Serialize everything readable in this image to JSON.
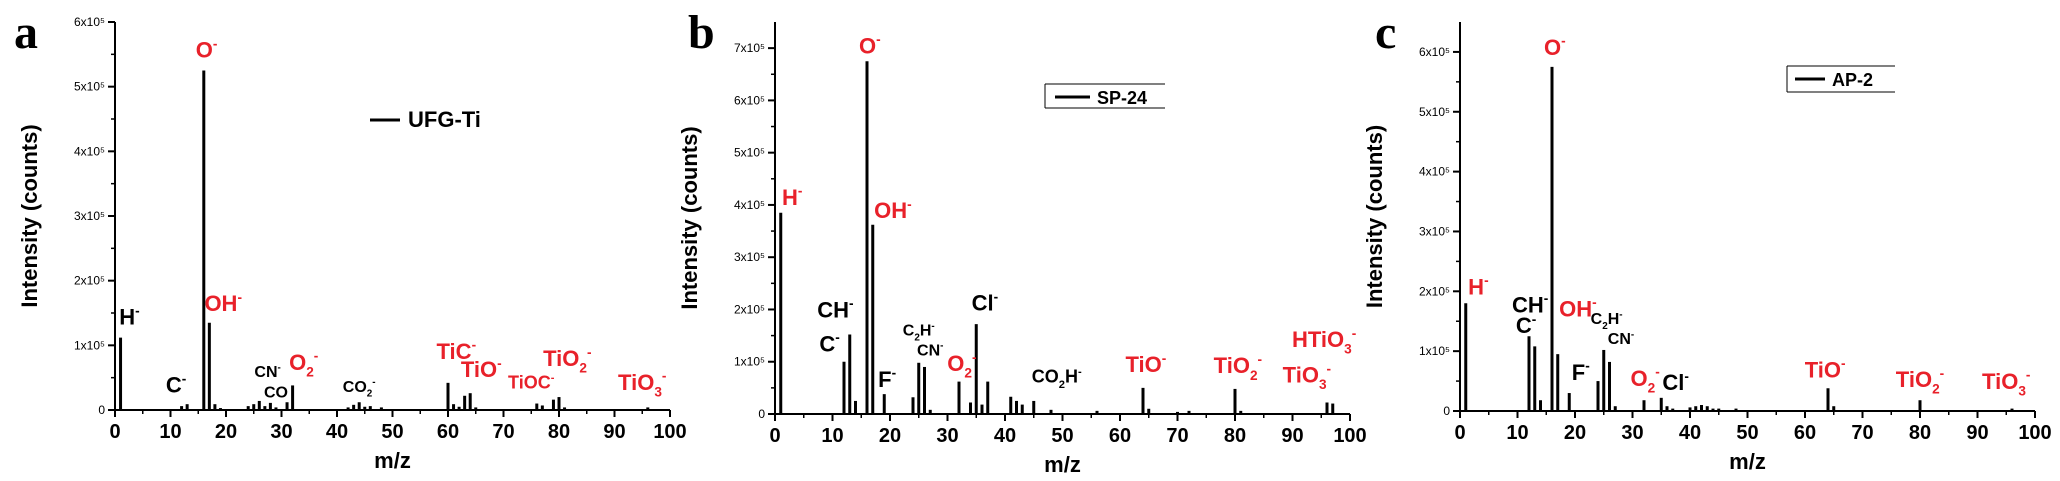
{
  "colors": {
    "axis": "#000000",
    "bars": "#000000",
    "oxide_label": "#e8212a",
    "other_label": "#000000",
    "background": "#ffffff"
  },
  "chart_data": [
    {
      "panel": "a",
      "type": "bar",
      "xlabel": "m/z",
      "ylabel": "Intensity (counts)",
      "xlim": [
        0,
        100
      ],
      "ylim": [
        0,
        600000
      ],
      "xticks": [
        0,
        10,
        20,
        30,
        40,
        50,
        60,
        70,
        80,
        90,
        100
      ],
      "yticks": [
        0,
        100000,
        200000,
        300000,
        400000,
        500000,
        600000
      ],
      "ytick_labels": [
        "0",
        "1x10⁵",
        "2x10⁵",
        "3x10⁵",
        "4x10⁵",
        "5x10⁵",
        "6x10⁵"
      ],
      "legend": {
        "label": "UFG-Ti",
        "position": "upper-right"
      },
      "series": [
        {
          "name": "UFG-Ti",
          "x": [
            1,
            12,
            13,
            16,
            17,
            18,
            19,
            24,
            25,
            26,
            27,
            28,
            29,
            31,
            32,
            42,
            43,
            44,
            45,
            46,
            48,
            60,
            61,
            62,
            63,
            64,
            65,
            76,
            77,
            79,
            80,
            81,
            96
          ],
          "y": [
            112000,
            6000,
            9000,
            525000,
            135000,
            9000,
            3000,
            6000,
            9000,
            14000,
            6000,
            11000,
            4000,
            12000,
            38000,
            4000,
            8000,
            12000,
            5000,
            6000,
            4000,
            42000,
            9000,
            5000,
            22000,
            26000,
            4000,
            10000,
            7000,
            16000,
            20000,
            4000,
            4000
          ]
        }
      ],
      "annotations": [
        {
          "text": "O",
          "sup": "-",
          "x": 16.5,
          "y": 545000,
          "color": "red",
          "size": "large"
        },
        {
          "text": "OH",
          "sup": "-",
          "x": 19.5,
          "y": 153000,
          "color": "red",
          "size": "large"
        },
        {
          "text": "H",
          "sup": "-",
          "x": 2.6,
          "y": 132000,
          "color": "black",
          "size": "large"
        },
        {
          "text": "C",
          "sup": "-",
          "x": 11.0,
          "y": 27000,
          "color": "black",
          "size": "large"
        },
        {
          "text": "CN",
          "sup": "-",
          "x": 27.5,
          "y": 51000,
          "color": "black",
          "size": "small"
        },
        {
          "text": "CO",
          "sup": "",
          "x": 29.0,
          "y": 19000,
          "color": "black",
          "size": "small"
        },
        {
          "text": "O",
          "sub": "2",
          "sup": "-",
          "x": 34.0,
          "y": 62000,
          "color": "red",
          "size": "large"
        },
        {
          "text": "CO",
          "sub": "2",
          "sup": "-",
          "x": 44.0,
          "y": 28000,
          "color": "black",
          "size": "small"
        },
        {
          "text": "TiC",
          "sup": "-",
          "x": 61.5,
          "y": 79000,
          "color": "red",
          "size": "large"
        },
        {
          "text": "TiO",
          "sup": "-",
          "x": 66.0,
          "y": 51000,
          "color": "red",
          "size": "large"
        },
        {
          "text": "TiOC",
          "sup": "-",
          "x": 75.0,
          "y": 33000,
          "color": "red",
          "size": "medium"
        },
        {
          "text": "TiO",
          "sub": "2",
          "sup": "-",
          "x": 81.5,
          "y": 68000,
          "color": "red",
          "size": "large"
        },
        {
          "text": "TiO",
          "sub": "3",
          "sup": "-",
          "x": 95.0,
          "y": 31000,
          "color": "red",
          "size": "large"
        }
      ]
    },
    {
      "panel": "b",
      "type": "bar",
      "xlabel": "m/z",
      "ylabel": "Intensity (counts)",
      "xlim": [
        0,
        100
      ],
      "ylim": [
        0,
        750000
      ],
      "xticks": [
        0,
        10,
        20,
        30,
        40,
        50,
        60,
        70,
        80,
        90,
        100
      ],
      "yticks": [
        0,
        100000,
        200000,
        300000,
        400000,
        500000,
        600000,
        700000
      ],
      "ytick_labels": [
        "0",
        "1x10⁵",
        "2x10⁵",
        "3x10⁵",
        "4x10⁵",
        "5x10⁵",
        "6x10⁵",
        "7x10⁵"
      ],
      "legend": {
        "label": "SP-24",
        "position": "upper-right"
      },
      "series": [
        {
          "name": "SP-24",
          "x": [
            1,
            12,
            13,
            14,
            16,
            17,
            19,
            24,
            25,
            26,
            27,
            32,
            34,
            35,
            36,
            37,
            41,
            42,
            43,
            45,
            48,
            56,
            64,
            65,
            70,
            72,
            80,
            81,
            96,
            97
          ],
          "y": [
            385000,
            100000,
            152000,
            25000,
            675000,
            362000,
            38000,
            32000,
            98000,
            90000,
            8000,
            62000,
            22000,
            172000,
            18000,
            62000,
            33000,
            25000,
            18000,
            25000,
            8000,
            6000,
            50000,
            10000,
            4000,
            6000,
            48000,
            6000,
            22000,
            20000
          ]
        }
      ],
      "annotations": [
        {
          "text": "O",
          "sup": "-",
          "x": 16.5,
          "y": 690000,
          "color": "red",
          "size": "large"
        },
        {
          "text": "H",
          "sup": "-",
          "x": 3.0,
          "y": 400000,
          "color": "red",
          "size": "large"
        },
        {
          "text": "OH",
          "sup": "-",
          "x": 20.5,
          "y": 375000,
          "color": "red",
          "size": "large"
        },
        {
          "text": "CH",
          "sup": "-",
          "x": 10.5,
          "y": 185000,
          "color": "black",
          "size": "large"
        },
        {
          "text": "C",
          "sup": "-",
          "x": 9.5,
          "y": 120000,
          "color": "black",
          "size": "large"
        },
        {
          "text": "F",
          "sup": "-",
          "x": 19.5,
          "y": 52000,
          "color": "black",
          "size": "large"
        },
        {
          "text": "C",
          "sub": "2",
          "text2": "H",
          "sup": "-",
          "x": 25.0,
          "y": 150000,
          "color": "black",
          "size": "small"
        },
        {
          "text": "CN",
          "sup": "-",
          "x": 27.0,
          "y": 112000,
          "color": "black",
          "size": "small"
        },
        {
          "text": "O",
          "sub": "2",
          "sup": "-",
          "x": 32.5,
          "y": 82000,
          "color": "red",
          "size": "large"
        },
        {
          "text": "Cl",
          "sup": "-",
          "x": 36.5,
          "y": 198000,
          "color": "black",
          "size": "large"
        },
        {
          "text": "CO",
          "sub": "2",
          "text2": "H",
          "sup": "-",
          "x": 49.0,
          "y": 60000,
          "color": "black",
          "size": "medium"
        },
        {
          "text": "TiO",
          "sup": "-",
          "x": 64.5,
          "y": 80000,
          "color": "red",
          "size": "large"
        },
        {
          "text": "TiO",
          "sub": "2",
          "sup": "-",
          "x": 80.5,
          "y": 78000,
          "color": "red",
          "size": "large"
        },
        {
          "text": "HTiO",
          "sub": "3",
          "sup": "-",
          "x": 95.5,
          "y": 128000,
          "color": "red",
          "size": "large"
        },
        {
          "text": "TiO",
          "sub": "3",
          "sup": "-",
          "x": 92.5,
          "y": 60000,
          "color": "red",
          "size": "large"
        }
      ]
    },
    {
      "panel": "c",
      "type": "bar",
      "xlabel": "m/z",
      "ylabel": "Intensity (counts)",
      "xlim": [
        0,
        100
      ],
      "ylim": [
        0,
        650000
      ],
      "xticks": [
        0,
        10,
        20,
        30,
        40,
        50,
        60,
        70,
        80,
        90,
        100
      ],
      "yticks": [
        0,
        100000,
        200000,
        300000,
        400000,
        500000,
        600000
      ],
      "ytick_labels": [
        "0",
        "1x10⁵",
        "2x10⁵",
        "3x10⁵",
        "4x10⁵",
        "5x10⁵",
        "6x10⁵"
      ],
      "legend": {
        "label": "AP-2",
        "position": "upper-right"
      },
      "series": [
        {
          "name": "AP-2",
          "x": [
            1,
            12,
            13,
            14,
            16,
            17,
            19,
            24,
            25,
            26,
            27,
            32,
            35,
            36,
            37,
            40,
            41,
            42,
            43,
            44,
            45,
            48,
            64,
            65,
            80,
            96
          ],
          "y": [
            180000,
            125000,
            108000,
            18000,
            575000,
            95000,
            30000,
            50000,
            102000,
            82000,
            8000,
            18000,
            22000,
            8000,
            4000,
            6000,
            8000,
            10000,
            8000,
            4000,
            4000,
            4000,
            38000,
            8000,
            18000,
            4000
          ]
        }
      ],
      "annotations": [
        {
          "text": "O",
          "sup": "-",
          "x": 16.5,
          "y": 595000,
          "color": "red",
          "size": "large"
        },
        {
          "text": "H",
          "sup": "-",
          "x": 3.2,
          "y": 195000,
          "color": "red",
          "size": "large"
        },
        {
          "text": "CH",
          "sup": "-",
          "x": 12.2,
          "y": 165000,
          "color": "black",
          "size": "large"
        },
        {
          "text": "C",
          "sup": "-",
          "x": 11.5,
          "y": 130000,
          "color": "black",
          "size": "large"
        },
        {
          "text": "OH",
          "sup": "-",
          "x": 20.5,
          "y": 158000,
          "color": "red",
          "size": "large"
        },
        {
          "text": "C",
          "sub": "2",
          "text2": "H",
          "sup": "-",
          "x": 25.5,
          "y": 145000,
          "color": "black",
          "size": "small"
        },
        {
          "text": "CN",
          "sup": "-",
          "x": 28.0,
          "y": 112000,
          "color": "black",
          "size": "small"
        },
        {
          "text": "F",
          "sup": "-",
          "x": 21.0,
          "y": 52000,
          "color": "black",
          "size": "large"
        },
        {
          "text": "O",
          "sub": "2",
          "sup": "-",
          "x": 32.2,
          "y": 42000,
          "color": "red",
          "size": "large"
        },
        {
          "text": "Cl",
          "sup": "-",
          "x": 37.5,
          "y": 35000,
          "color": "black",
          "size": "large"
        },
        {
          "text": "TiO",
          "sup": "-",
          "x": 63.5,
          "y": 56000,
          "color": "red",
          "size": "large"
        },
        {
          "text": "TiO",
          "sub": "2",
          "sup": "-",
          "x": 80.0,
          "y": 40000,
          "color": "red",
          "size": "large"
        },
        {
          "text": "TiO",
          "sub": "3",
          "sup": "-",
          "x": 95.0,
          "y": 37000,
          "color": "red",
          "size": "large"
        }
      ]
    }
  ]
}
